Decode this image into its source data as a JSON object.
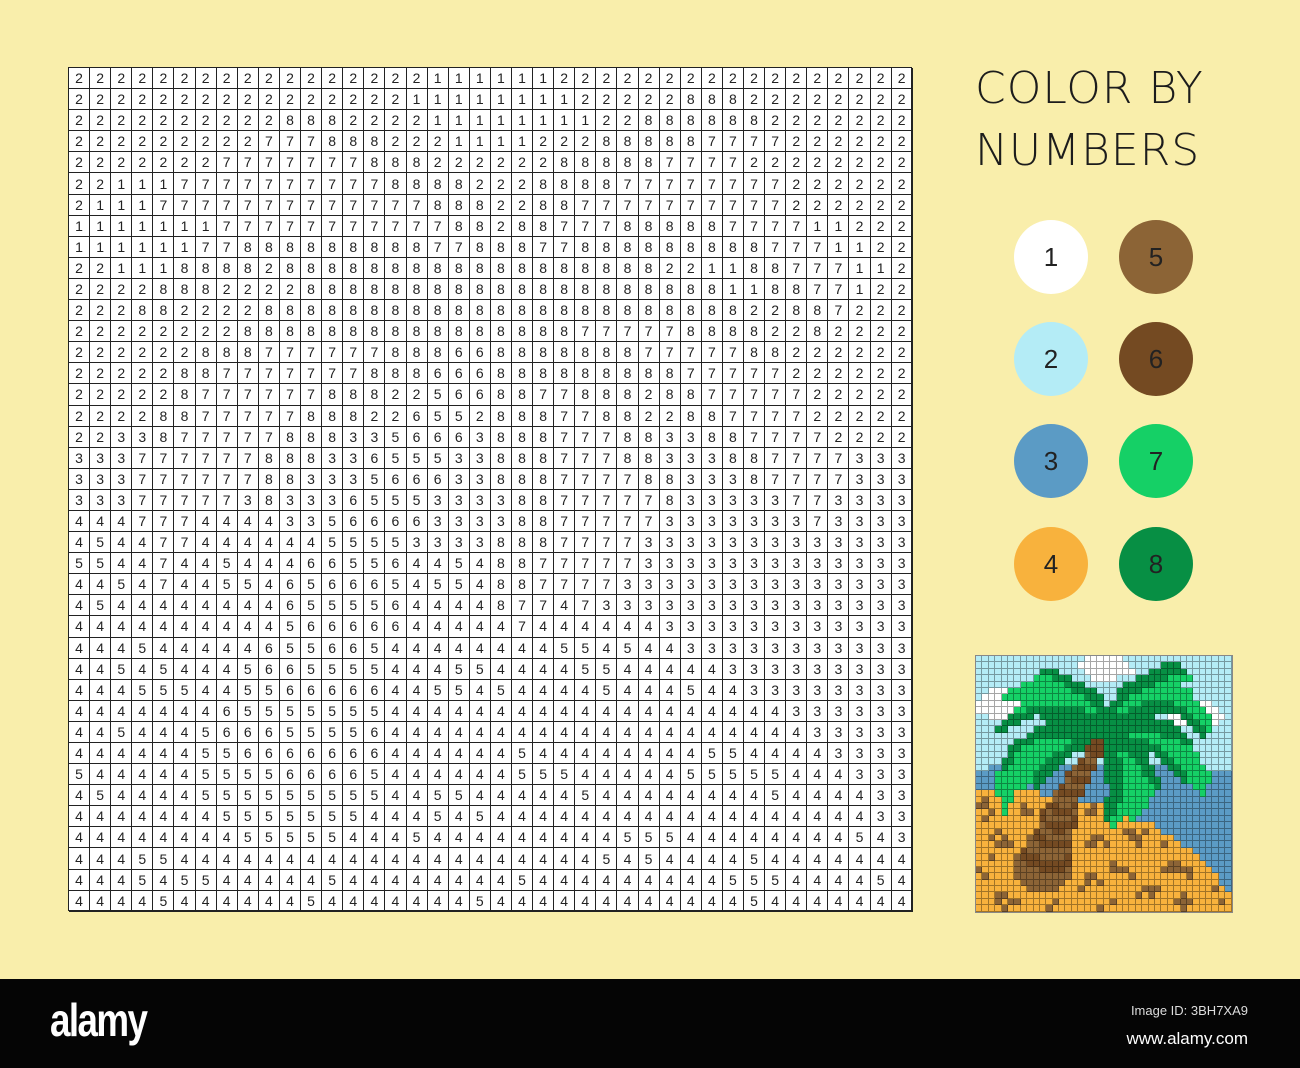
{
  "title": {
    "line1": "COLOR BY",
    "line2": "NUMBERS"
  },
  "palette": [
    {
      "number": "1",
      "color": "#ffffff"
    },
    {
      "number": "2",
      "color": "#b4ecf6"
    },
    {
      "number": "3",
      "color": "#5b9bc5"
    },
    {
      "number": "4",
      "color": "#f8b23d"
    },
    {
      "number": "5",
      "color": "#8c6436"
    },
    {
      "number": "6",
      "color": "#744a22"
    },
    {
      "number": "7",
      "color": "#15d066"
    },
    {
      "number": "8",
      "color": "#078f44"
    }
  ],
  "grid_rows": [
    "2222222222222222211111122222222222222222",
    "2222222222222222111111112222288822222222",
    "2222222222888222211111111228888882222222",
    "2222222227778882221111222888887777222222",
    "2222222777777788822222288888777722222222",
    "2211177777777778888222888877777777222222",
    "2111777777777777788822887777777777222222",
    "1111111777777777778828877788888777711222",
    "1111117788888888877888778888888887771122",
    "2211188882888888888888888888221188777112",
    "2222888222288888888888888888888118877122",
    "2228822228888888888888888888888822887222",
    "2222222288888888888888887777788882282222",
    "2222228887777778886688888887777788222222",
    "2222288777777788866688888888877777222222",
    "2222287777778882256688778882887777722222",
    "2222887777788822655288877882288777722222",
    "2233877777888335666388877788338877772222",
    "3337777778883365553388877788333887777333",
    "3337777778833356663388877778833387777333",
    "3337777738333655533338877777833333773333",
    "4447774444335666633338877777333333373333",
    "4544774444445555333388877773333333333333",
    "5544744544466556445488777773333333333333",
    "4454744554656665455488777733333333333333",
    "4544444444655556444487747333333333333333",
    "4444444444566666444447444444333333333333",
    "4445444446556654444444455454433333333333",
    "4454544456655554445544445544444333333333",
    "4445554455666664455454444544454433333333",
    "4444444655555554444444444444444444333333",
    "4454445666555564444444444444444444433333",
    "4444445566666664444445444444445544443333",
    "5444445555666654444445554444455555444333",
    "4544445555555554455444445444444445444433",
    "4444444555555544454544444444444444444433",
    "4444444455555444544444444455544444444543",
    "4445544444444444444444444545444454444444",
    "4445455444445444444445444444444555444454",
    "4444544444454444444544444444444454444444"
  ],
  "watermark": {
    "logo": "alamy",
    "image_id": "Image ID: 3BH7XA9",
    "site": "www.alamy.com"
  }
}
